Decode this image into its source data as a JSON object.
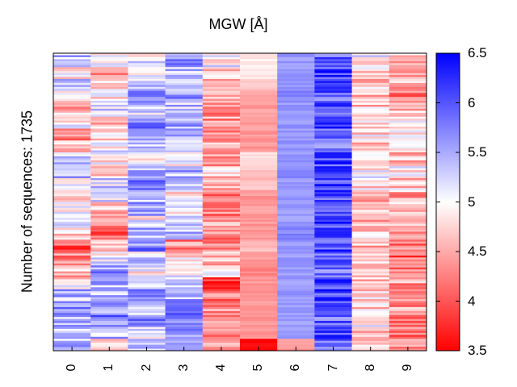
{
  "chart_data": {
    "type": "heatmap",
    "title": "MGW [Å]",
    "ylabel": "Number of sequences: 1735",
    "x": [
      "0",
      "1",
      "2",
      "3",
      "4",
      "5",
      "6",
      "7",
      "8",
      "9"
    ],
    "n_rows": 1735,
    "colorbar": {
      "range": [
        3.5,
        6.5
      ],
      "ticks": [
        "3.5",
        "4",
        "4.5",
        "5",
        "5.5",
        "6",
        "6.5"
      ],
      "colormap": [
        "#ff0000",
        "#ffffff",
        "#0000ff"
      ]
    },
    "column_profiles": [
      [
        5.4,
        4.8,
        5.2,
        4.9,
        4.6,
        4.9,
        4.2,
        4.7,
        5.3,
        5.5,
        5.2,
        4.9,
        5.1,
        5.4,
        4.7,
        4.0,
        4.3,
        4.6,
        4.9,
        5.4,
        5.6,
        5.5,
        5.3,
        5.4
      ],
      [
        5.0,
        4.5,
        4.7,
        4.9,
        5.2,
        4.6,
        4.8,
        5.0,
        4.9,
        4.6,
        5.2,
        5.3,
        4.6,
        4.4,
        4.0,
        4.6,
        5.1,
        5.6,
        5.4,
        5.3,
        5.6,
        5.8,
        5.4,
        4.9
      ],
      [
        5.1,
        4.9,
        5.2,
        5.9,
        5.3,
        5.8,
        5.7,
        5.2,
        5.0,
        5.4,
        5.8,
        5.2,
        5.5,
        5.0,
        5.4,
        5.7,
        5.2,
        5.0,
        5.4,
        5.7,
        5.4,
        5.9,
        5.2,
        5.4
      ],
      [
        5.6,
        5.4,
        5.5,
        5.7,
        5.3,
        5.5,
        5.6,
        5.3,
        5.0,
        5.4,
        5.2,
        4.9,
        5.1,
        5.2,
        5.4,
        4.3,
        4.8,
        5.0,
        5.4,
        5.5,
        5.7,
        5.6,
        5.5,
        5.3
      ],
      [
        5.0,
        4.8,
        4.7,
        4.4,
        4.2,
        4.4,
        4.3,
        4.5,
        4.5,
        4.7,
        4.5,
        4.2,
        4.3,
        4.5,
        4.3,
        4.4,
        4.6,
        4.8,
        3.7,
        4.2,
        4.4,
        4.3,
        4.4,
        4.4
      ],
      [
        4.9,
        4.8,
        4.7,
        4.4,
        4.4,
        4.4,
        4.4,
        4.4,
        4.8,
        4.7,
        4.6,
        4.4,
        4.4,
        4.4,
        4.4,
        4.6,
        4.4,
        4.3,
        4.4,
        4.4,
        4.4,
        4.4,
        4.4,
        3.5
      ],
      [
        5.6,
        5.6,
        5.6,
        5.7,
        5.6,
        5.6,
        5.6,
        5.6,
        5.6,
        5.7,
        5.6,
        5.6,
        5.6,
        5.6,
        5.7,
        5.6,
        5.6,
        5.6,
        5.6,
        5.6,
        5.6,
        5.6,
        5.6,
        4.4
      ],
      [
        5.9,
        6.1,
        6.0,
        5.9,
        6.1,
        6.2,
        6.0,
        5.9,
        6.1,
        6.2,
        6.1,
        6.0,
        6.2,
        6.1,
        5.9,
        6.1,
        6.0,
        5.9,
        6.0,
        6.1,
        6.0,
        5.9,
        6.1,
        5.8
      ],
      [
        5.0,
        4.8,
        4.6,
        4.5,
        4.7,
        4.9,
        4.8,
        4.6,
        4.7,
        5.0,
        4.8,
        4.6,
        4.9,
        4.5,
        4.7,
        4.6,
        4.8,
        4.5,
        4.6,
        4.8,
        4.7,
        4.9,
        4.6,
        4.8
      ],
      [
        4.6,
        4.4,
        4.5,
        4.3,
        4.6,
        4.8,
        4.9,
        4.7,
        4.6,
        4.9,
        4.7,
        4.5,
        4.7,
        4.5,
        4.4,
        4.3,
        4.1,
        4.3,
        4.4,
        4.2,
        4.4,
        4.3,
        4.2,
        4.5
      ]
    ]
  }
}
